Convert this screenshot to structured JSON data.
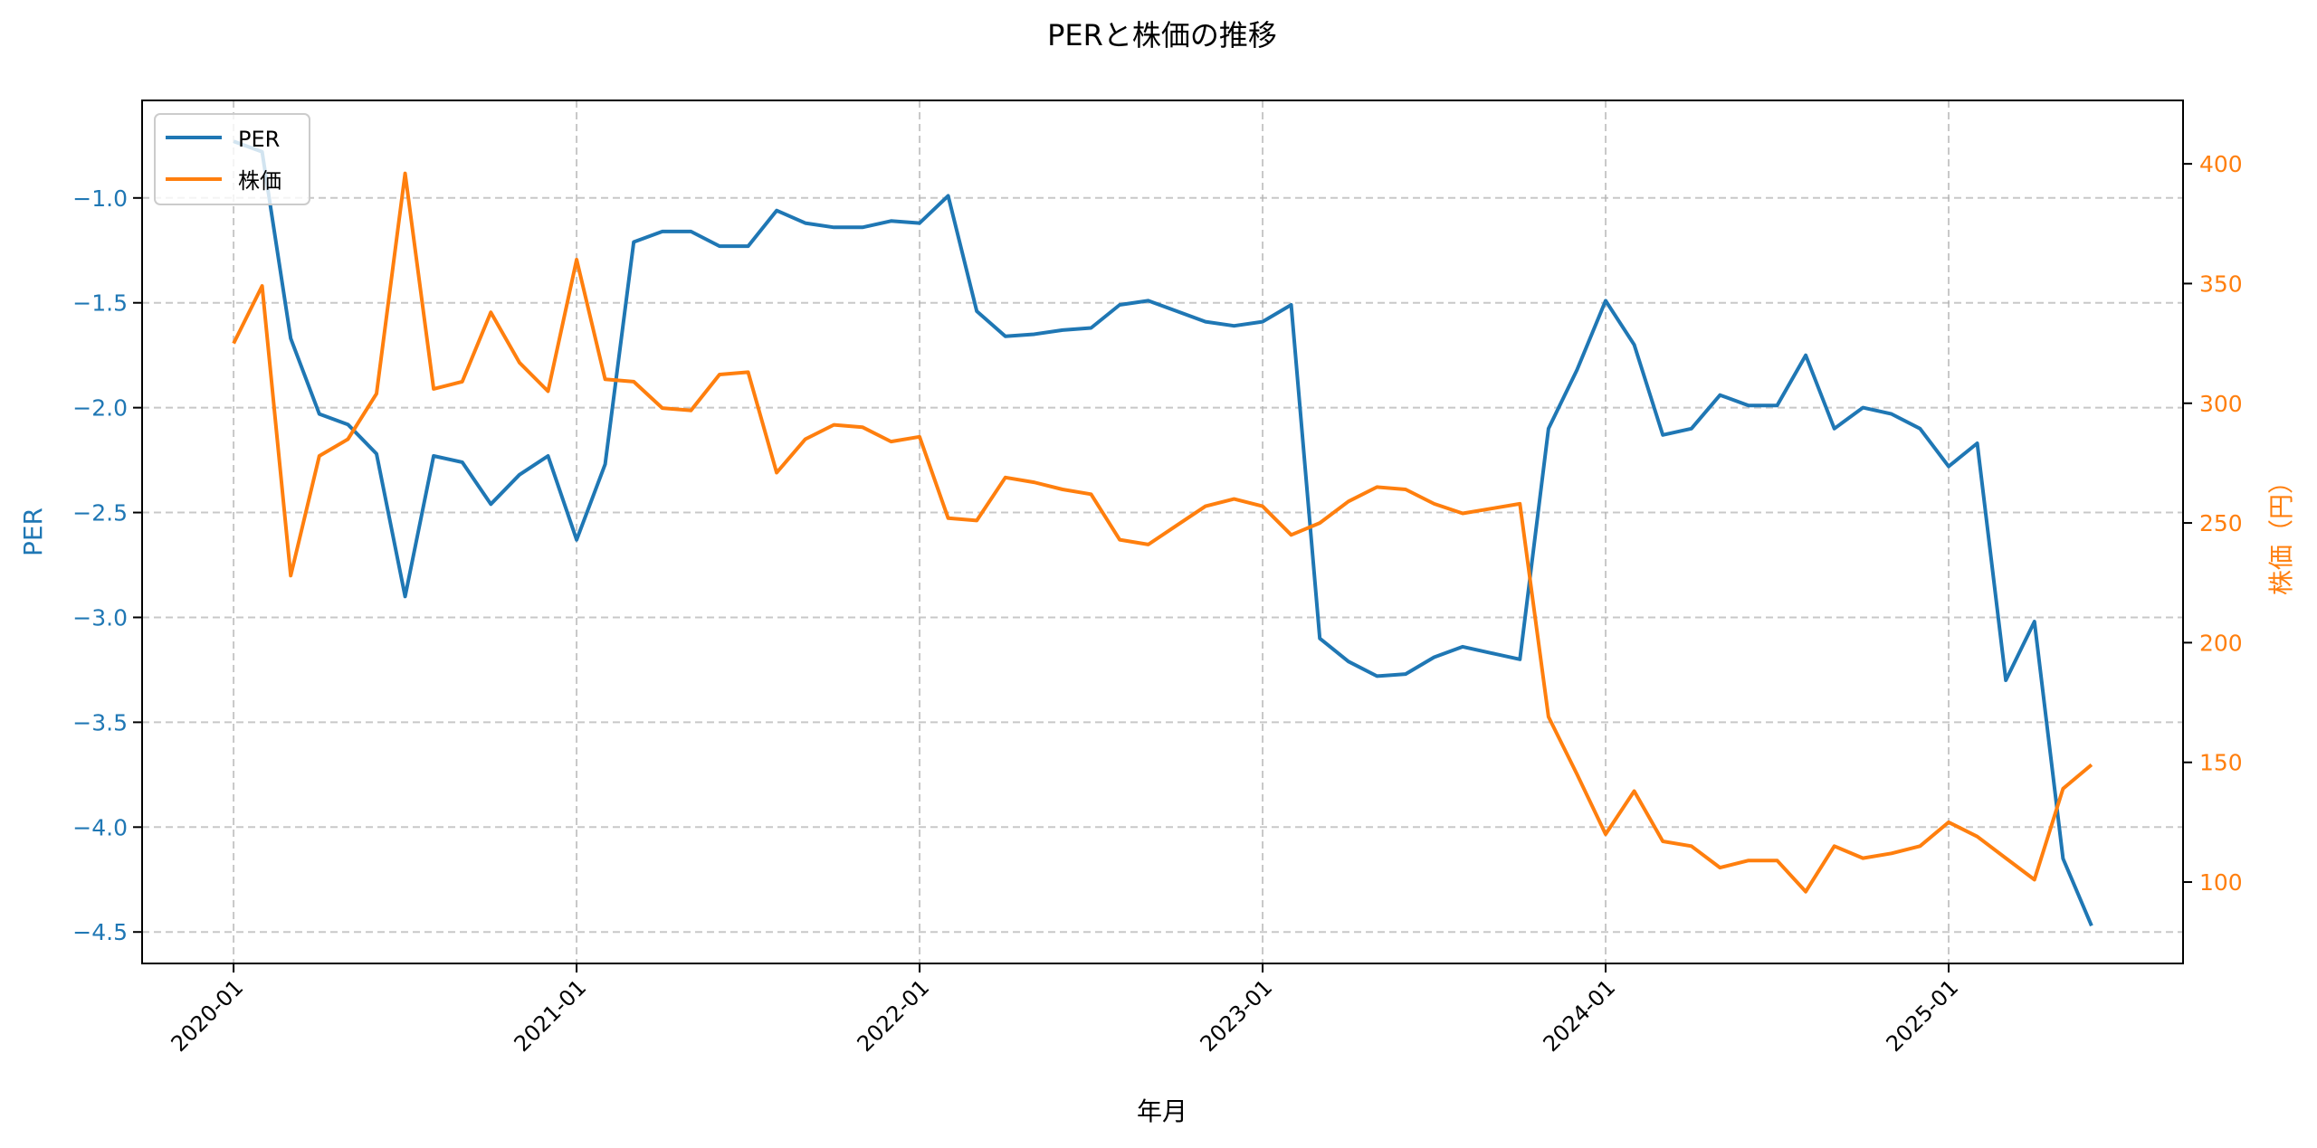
{
  "chart_data": {
    "type": "line",
    "title": "PERと株価の推移",
    "xlabel": "年月",
    "ylabel_left": "PER",
    "ylabel_right": "株価（円）",
    "x_start": "2020-01",
    "x_ticks": [
      "2020-01",
      "2021-01",
      "2022-01",
      "2023-01",
      "2024-01",
      "2025-01"
    ],
    "x_tick_month_index": [
      0,
      12,
      24,
      36,
      48,
      60
    ],
    "xlim_month_index": [
      -3.2,
      68.2
    ],
    "ylim_left": [
      -4.65,
      -0.535
    ],
    "yticks_left": [
      "-1.0",
      "-1.5",
      "-2.0",
      "-2.5",
      "-3.0",
      "-3.5",
      "-4.0",
      "-4.5"
    ],
    "ylim_right": [
      66,
      426.5
    ],
    "yticks_right": [
      "100",
      "150",
      "200",
      "250",
      "300",
      "350",
      "400"
    ],
    "grid": true,
    "legend_position": "top-left",
    "colors": {
      "left_axis": "#1f77b4",
      "right_axis": "#ff7f0e"
    },
    "series": [
      {
        "name": "PER",
        "axis": "left",
        "color": "#1f77b4",
        "values": [
          -0.73,
          -0.78,
          -1.67,
          -2.03,
          -2.08,
          -2.22,
          -2.9,
          -2.23,
          -2.26,
          -2.46,
          -2.32,
          -2.23,
          -2.63,
          -2.27,
          -1.21,
          -1.16,
          -1.16,
          -1.23,
          -1.23,
          -1.06,
          -1.12,
          -1.14,
          -1.14,
          -1.11,
          -1.12,
          -0.99,
          -1.54,
          -1.66,
          -1.65,
          -1.63,
          -1.62,
          -1.51,
          -1.49,
          -1.54,
          -1.59,
          -1.61,
          -1.59,
          -1.51,
          -3.1,
          -3.21,
          -3.28,
          -3.27,
          -3.19,
          -3.14,
          -3.17,
          -3.2,
          -2.1,
          -1.82,
          -1.49,
          -1.7,
          -2.13,
          -2.1,
          -1.94,
          -1.99,
          -1.99,
          -1.75,
          -2.1,
          -2.0,
          -2.03,
          -2.1,
          -2.28,
          -2.17,
          -3.3,
          -3.02,
          -4.15,
          -4.47
        ]
      },
      {
        "name": "株価",
        "axis": "right",
        "color": "#ff7f0e",
        "values": [
          325,
          349,
          228,
          278,
          285,
          304,
          396,
          306,
          309,
          338,
          317,
          305,
          360,
          310,
          309,
          298,
          297,
          312,
          313,
          271,
          285,
          291,
          290,
          284,
          286,
          252,
          251,
          269,
          267,
          264,
          262,
          243,
          241,
          249,
          257,
          260,
          257,
          245,
          250,
          259,
          265,
          264,
          258,
          254,
          256,
          258,
          169,
          145,
          120,
          138,
          117,
          115,
          106,
          109,
          109,
          96,
          115,
          110,
          112,
          115,
          125,
          119,
          110,
          101,
          139,
          149
        ]
      }
    ]
  }
}
